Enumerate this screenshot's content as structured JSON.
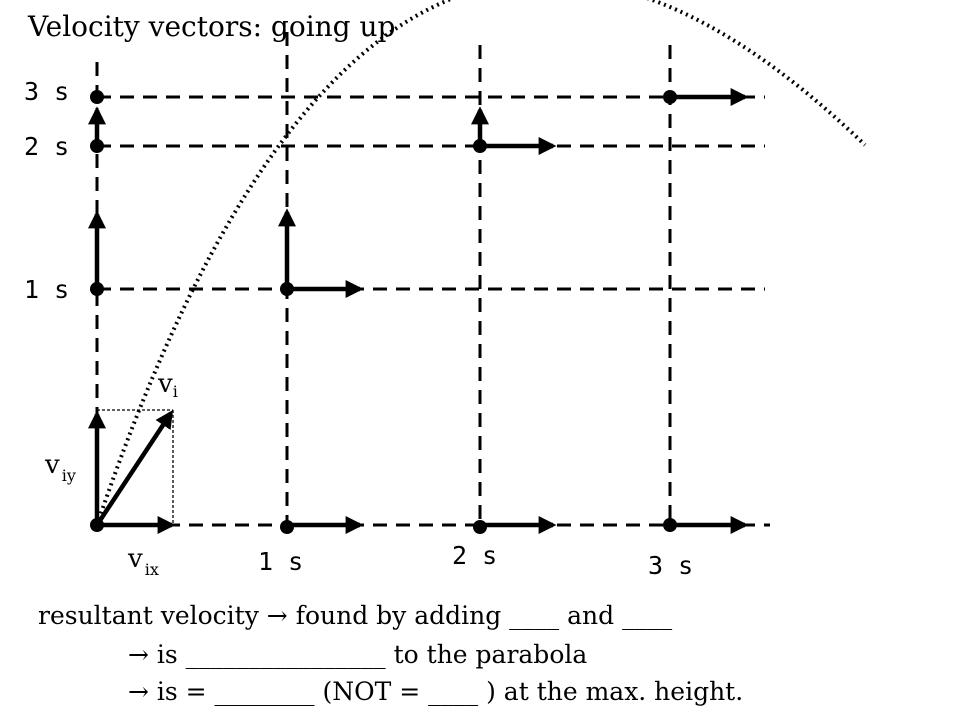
{
  "title": "Velocity vectors:  going up",
  "vertical_time_labels": [
    "3 s",
    "2 s",
    "1 s"
  ],
  "horizontal_time_labels": [
    "1 s",
    "2 s",
    "3 s"
  ],
  "vector_labels": {
    "v_i": {
      "base": "v",
      "sub": "i"
    },
    "v_iy": {
      "base": "v",
      "sub": "iy"
    },
    "v_ix": {
      "base": "v",
      "sub": "ix"
    }
  },
  "notes": {
    "line1": "resultant velocity  → found by adding ____ and ____",
    "line2": "→  is ________________   to the parabola",
    "line3": "→  is =  ________ (NOT = ____ ) at the max. height."
  }
}
